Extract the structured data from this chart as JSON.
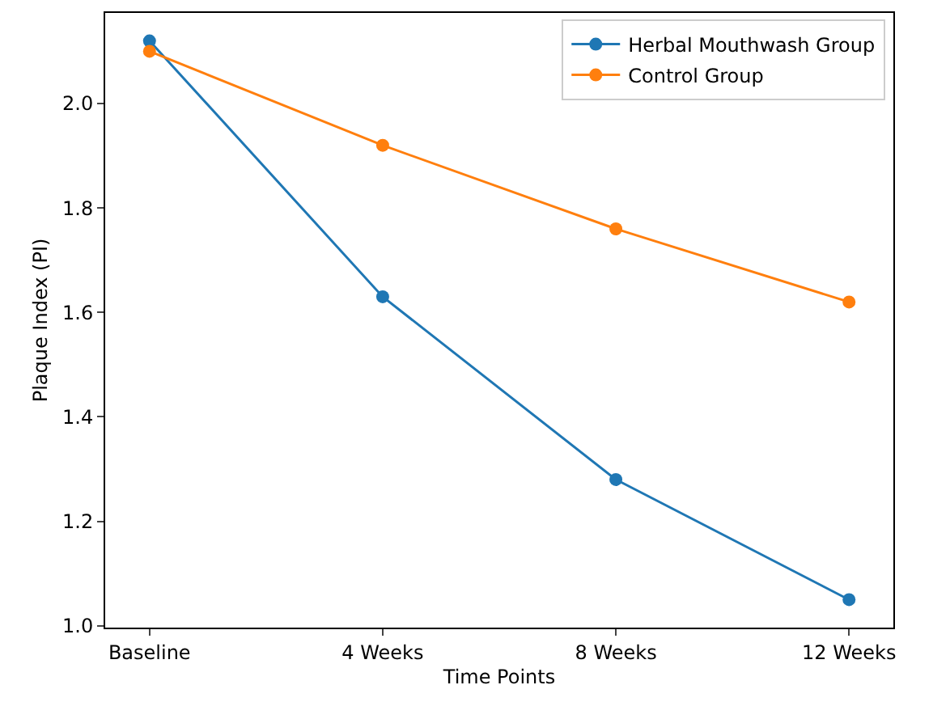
{
  "chart_data": {
    "type": "line",
    "xlabel": "Time Points",
    "ylabel": "Plaque Index (PI)",
    "categories": [
      "Baseline",
      "4 Weeks",
      "8 Weeks",
      "12 Weeks"
    ],
    "series": [
      {
        "name": "Herbal Mouthwash Group",
        "color": "#1f77b4",
        "values": [
          2.12,
          1.63,
          1.28,
          1.05
        ]
      },
      {
        "name": "Control Group",
        "color": "#ff7f0e",
        "values": [
          2.1,
          1.92,
          1.76,
          1.62
        ]
      }
    ],
    "ylim": [
      0.9965,
      2.1735
    ],
    "yticks": [
      {
        "value": 1.0,
        "label": "1.0"
      },
      {
        "value": 1.2,
        "label": "1.2"
      },
      {
        "value": 1.4,
        "label": "1.4"
      },
      {
        "value": 1.6,
        "label": "1.6"
      },
      {
        "value": 1.8,
        "label": "1.8"
      },
      {
        "value": 2.0,
        "label": "2.0"
      }
    ],
    "grid": false,
    "legend": "top right",
    "marker": "circle",
    "line_style": "solid"
  }
}
